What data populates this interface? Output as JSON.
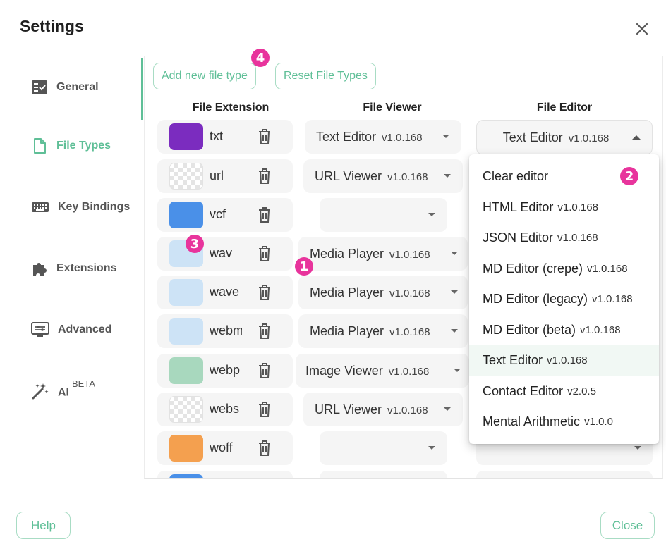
{
  "dialog": {
    "title": "Settings"
  },
  "sidebar": {
    "items": [
      {
        "label": "General",
        "icon": "general-icon"
      },
      {
        "label": "File Types",
        "icon": "file-icon",
        "active": true
      },
      {
        "label": "Key Bindings",
        "icon": "keyboard-icon"
      },
      {
        "label": "Extensions",
        "icon": "puzzle-icon"
      },
      {
        "label": "Advanced",
        "icon": "advanced-icon"
      },
      {
        "label": "AI",
        "icon": "magic-wand-icon",
        "sup": "BETA"
      }
    ]
  },
  "toolbar": {
    "add_label": "Add new file type",
    "reset_label": "Reset File Types"
  },
  "columns": {
    "extension": "File Extension",
    "viewer": "File Viewer",
    "editor": "File Editor"
  },
  "rows": [
    {
      "ext": "txt",
      "color": "#7b2cbf",
      "viewer": "Text Editor",
      "viewer_version": "v1.0.168",
      "editor": "Text Editor",
      "editor_version": "v1.0.168"
    },
    {
      "ext": "url",
      "color": "checker",
      "viewer": "URL Viewer",
      "viewer_version": "v1.0.168"
    },
    {
      "ext": "vcf",
      "color": "#4a90e8",
      "viewer": "",
      "viewer_version": ""
    },
    {
      "ext": "wav",
      "color": "#cde3f6",
      "viewer": "Media Player",
      "viewer_version": "v1.0.168"
    },
    {
      "ext": "wave",
      "color": "#cde3f6",
      "viewer": "Media Player",
      "viewer_version": "v1.0.168"
    },
    {
      "ext": "webm",
      "color": "#cde3f6",
      "viewer": "Media Player",
      "viewer_version": "v1.0.168"
    },
    {
      "ext": "webp",
      "color": "#a8d8be",
      "viewer": "Image Viewer",
      "viewer_version": "v1.0.168"
    },
    {
      "ext": "webs",
      "color": "checker",
      "viewer": "URL Viewer",
      "viewer_version": "v1.0.168"
    },
    {
      "ext": "woff",
      "color": "#f4a04f",
      "viewer": "",
      "viewer_version": ""
    }
  ],
  "menu": {
    "items": [
      {
        "label": "Clear editor",
        "version": ""
      },
      {
        "label": "HTML Editor",
        "version": "v1.0.168"
      },
      {
        "label": "JSON Editor",
        "version": "v1.0.168"
      },
      {
        "label": "MD Editor (crepe)",
        "version": "v1.0.168"
      },
      {
        "label": "MD Editor (legacy)",
        "version": "v1.0.168"
      },
      {
        "label": "MD Editor (beta)",
        "version": "v1.0.168"
      },
      {
        "label": "Text Editor",
        "version": "v1.0.168",
        "selected": true
      },
      {
        "label": "Contact Editor",
        "version": "v2.0.5"
      },
      {
        "label": "Mental Arithmetic",
        "version": "v1.0.0"
      }
    ]
  },
  "badges": [
    "1",
    "2",
    "3",
    "4"
  ],
  "footer": {
    "help_label": "Help",
    "close_label": "Close"
  },
  "colors": {
    "accent": "#5fbf97",
    "badge": "#e8349c"
  }
}
